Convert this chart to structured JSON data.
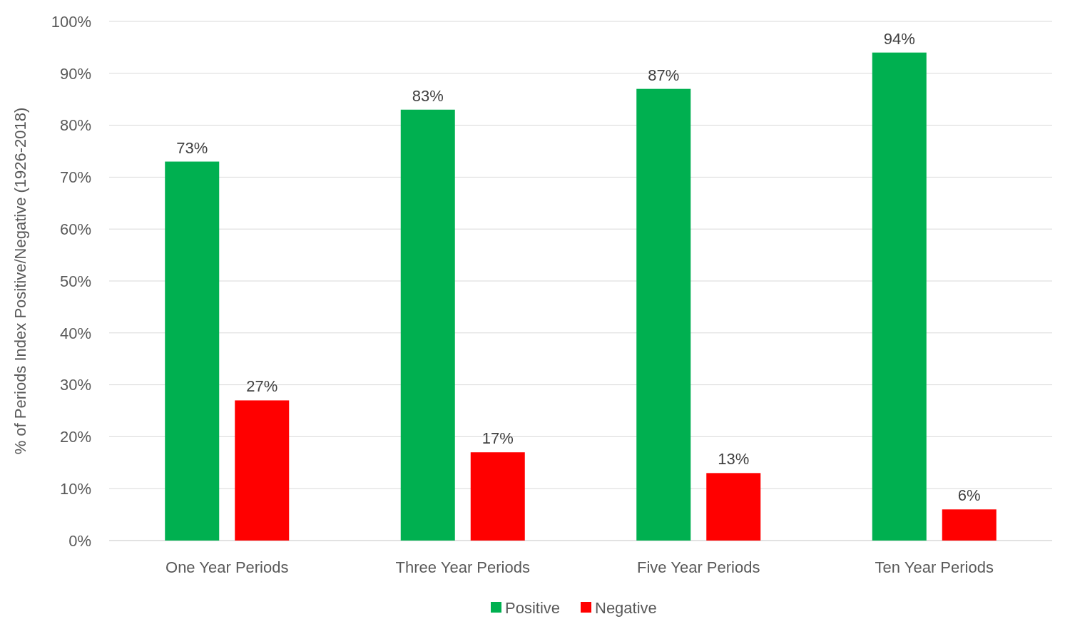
{
  "chart_data": {
    "type": "bar",
    "ylabel": "% of Periods Index Positive/Negative (1926-2018)",
    "categories": [
      "One Year Periods",
      "Three Year Periods",
      "Five Year Periods",
      "Ten Year Periods"
    ],
    "series": [
      {
        "name": "Positive",
        "color": "#00b050",
        "values": [
          73,
          83,
          87,
          94
        ],
        "value_labels": [
          "73%",
          "83%",
          "87%",
          "94%"
        ]
      },
      {
        "name": "Negative",
        "color": "#ff0000",
        "values": [
          27,
          17,
          13,
          6
        ],
        "value_labels": [
          "27%",
          "17%",
          "13%",
          "6%"
        ]
      }
    ],
    "ylim": [
      0,
      100
    ],
    "yticks": [
      {
        "value": 0,
        "label": "0%"
      },
      {
        "value": 10,
        "label": "10%"
      },
      {
        "value": 20,
        "label": "20%"
      },
      {
        "value": 30,
        "label": "30%"
      },
      {
        "value": 40,
        "label": "40%"
      },
      {
        "value": 50,
        "label": "50%"
      },
      {
        "value": 60,
        "label": "60%"
      },
      {
        "value": 70,
        "label": "70%"
      },
      {
        "value": 80,
        "label": "80%"
      },
      {
        "value": 90,
        "label": "90%"
      },
      {
        "value": 100,
        "label": "100%"
      }
    ],
    "grid": "y",
    "legend": "bottom"
  }
}
